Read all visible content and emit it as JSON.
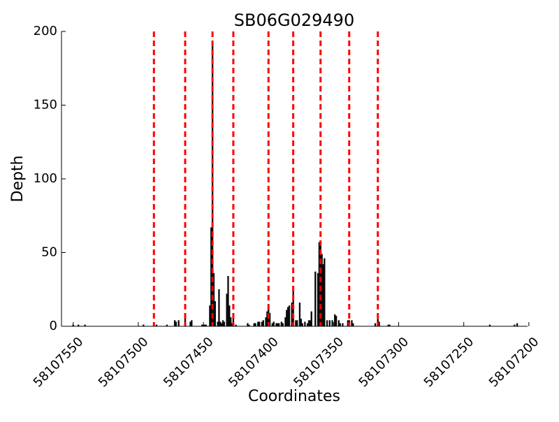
{
  "chart_data": {
    "type": "bar",
    "title": "SB06G029490",
    "xlabel": "Coordinates",
    "ylabel": "Depth",
    "xlim": [
      58107559,
      58107201
    ],
    "xticks": [
      58107550,
      58107500,
      58107450,
      58107400,
      58107350,
      58107300,
      58107250,
      58107200
    ],
    "ylim": [
      0,
      200
    ],
    "yticks": [
      0,
      50,
      100,
      150,
      200
    ],
    "color": "#000000",
    "vlines": {
      "color": "#ff0000",
      "x": [
        58107488,
        58107464,
        58107443,
        58107427,
        58107400,
        58107381,
        58107360,
        58107338,
        58107316
      ]
    },
    "x": [
      58107550,
      58107546,
      58107541,
      58107496,
      58107486,
      58107478,
      58107472,
      58107471,
      58107469,
      58107464,
      58107460,
      58107459,
      58107451,
      58107450,
      58107449,
      58107448,
      58107445,
      58107444,
      58107443,
      58107442,
      58107441,
      58107439,
      58107438,
      58107437,
      58107436,
      58107435,
      58107434,
      58107432,
      58107431,
      58107430,
      58107429,
      58107428,
      58107427,
      58107425,
      58107416,
      58107415,
      58107411,
      58107410,
      58107408,
      58107407,
      58107405,
      58107404,
      58107402,
      58107401,
      58107400,
      58107399,
      58107397,
      58107396,
      58107394,
      58107393,
      58107392,
      58107390,
      58107389,
      58107387,
      58107386,
      58107385,
      58107384,
      58107382,
      58107381,
      58107379,
      58107378,
      58107376,
      58107375,
      58107374,
      58107372,
      58107370,
      58107369,
      58107368,
      58107367,
      58107364,
      58107362,
      58107361,
      58107360,
      58107359,
      58107358,
      58107357,
      58107355,
      58107353,
      58107351,
      58107349,
      58107348,
      58107346,
      58107345,
      58107343,
      58107339,
      58107338,
      58107336,
      58107335,
      58107318,
      58107316,
      58107315,
      58107308,
      58107307,
      58107230,
      58107211,
      58107209
    ],
    "values": [
      1,
      1,
      1,
      1,
      1,
      1,
      4,
      3,
      4,
      6,
      3,
      4,
      1,
      1,
      1,
      1,
      14,
      67,
      190,
      36,
      17,
      3,
      25,
      3,
      2,
      4,
      3,
      22,
      34,
      14,
      6,
      2,
      7,
      1,
      2,
      1,
      2,
      2,
      3,
      3,
      3,
      4,
      6,
      10,
      14,
      9,
      2,
      3,
      2,
      2,
      2,
      3,
      2,
      6,
      11,
      13,
      14,
      16,
      25,
      4,
      4,
      16,
      5,
      2,
      3,
      2,
      4,
      4,
      10,
      37,
      36,
      57,
      55,
      49,
      42,
      46,
      4,
      4,
      4,
      8,
      7,
      4,
      2,
      2,
      4,
      4,
      4,
      2,
      2,
      5,
      3,
      1,
      1,
      1,
      1,
      2
    ]
  }
}
